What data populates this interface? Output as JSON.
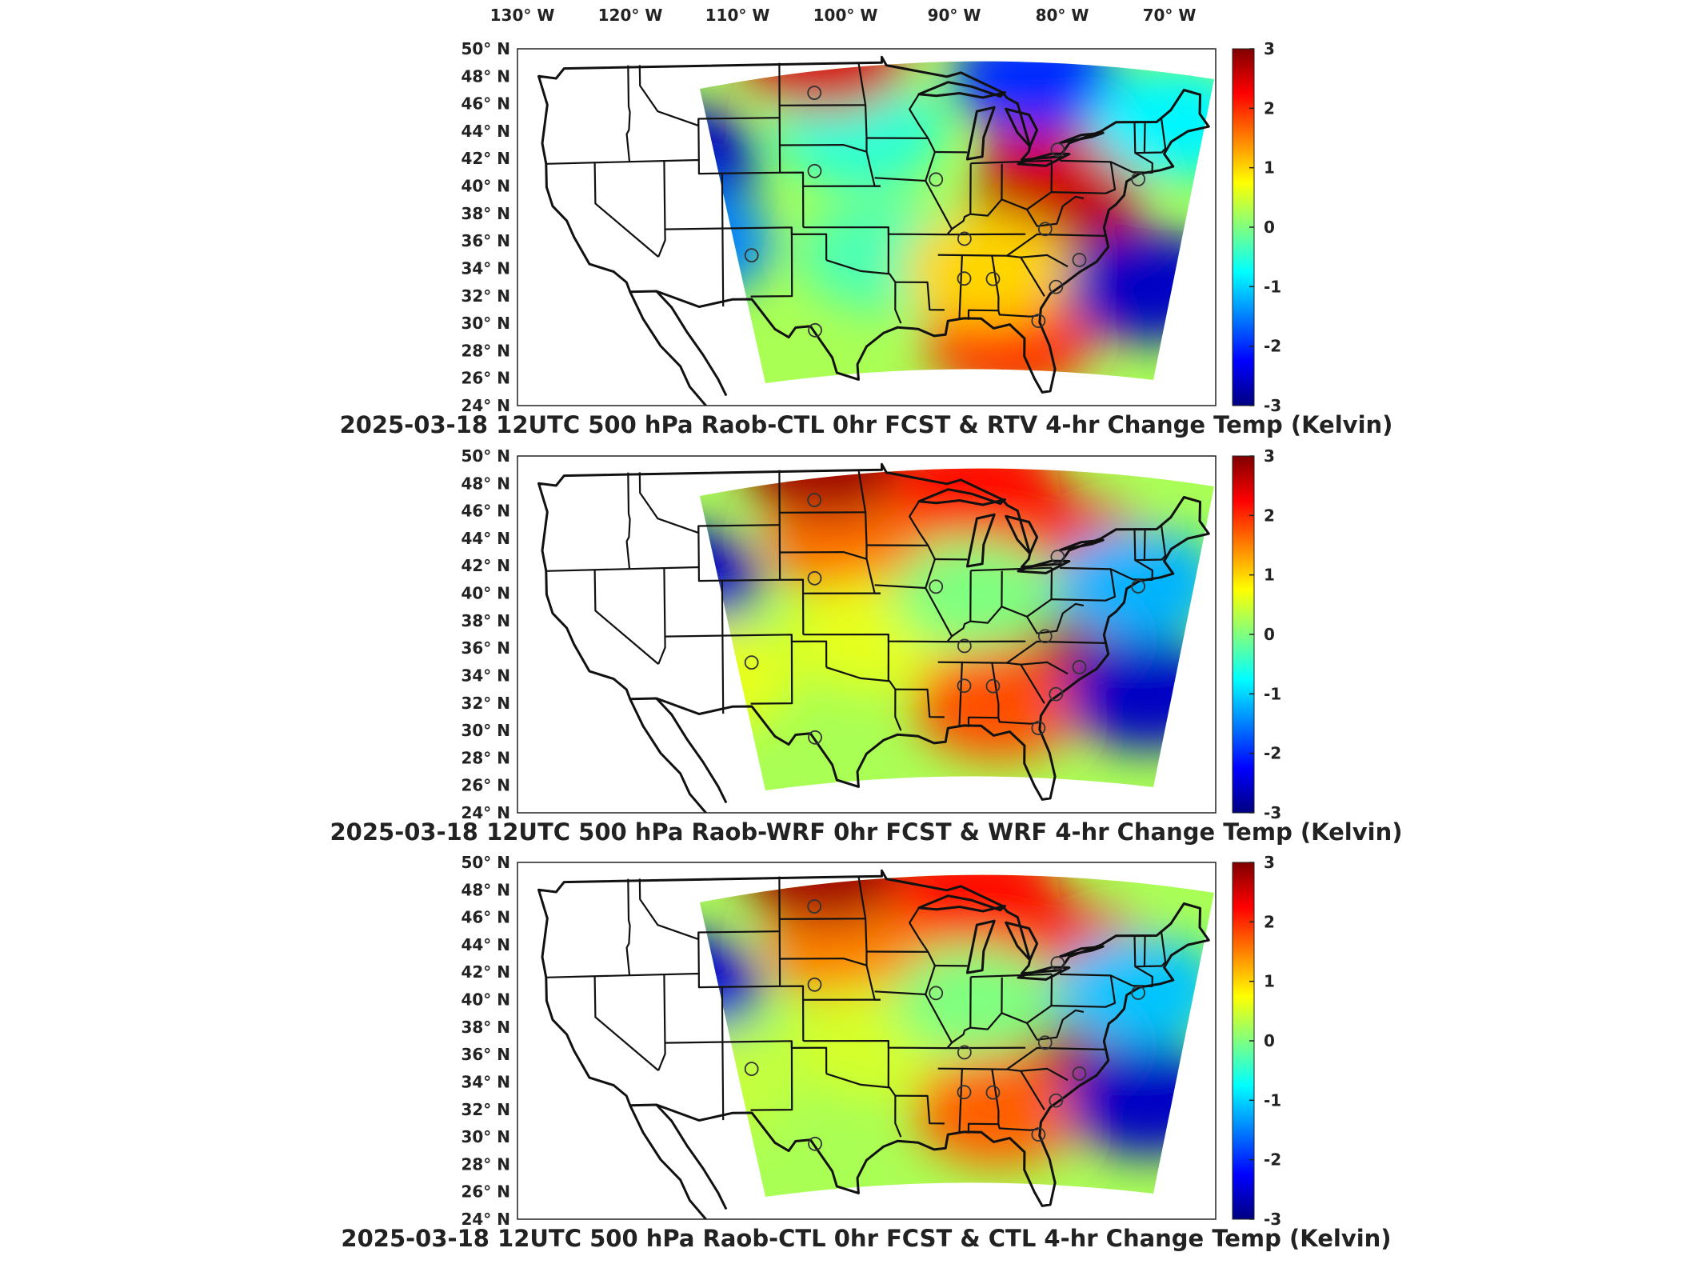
{
  "longitude_labels": [
    "130° W",
    "120° W",
    "110° W",
    "100° W",
    "90° W",
    "80° W",
    "70° W"
  ],
  "latitude_labels": [
    "50° N",
    "48° N",
    "46° N",
    "44° N",
    "42° N",
    "40° N",
    "38° N",
    "36° N",
    "34° N",
    "32° N",
    "30° N",
    "28° N",
    "26° N",
    "24° N"
  ],
  "colorbar": {
    "ticks": [
      "3",
      "2",
      "1",
      "0",
      "-1",
      "-2",
      "-3"
    ],
    "colormap": [
      "#800000",
      "#ff0000",
      "#ff8000",
      "#ffff00",
      "#80ff80",
      "#00ffff",
      "#0080ff",
      "#0000ff",
      "#000080"
    ]
  },
  "panels": [
    {
      "title": "2025-03-18 12UTC 500 hPa Raob-CTL 0hr FCST & RTV 4-hr Change Temp (Kelvin)",
      "chart_data": {
        "type": "heatmap",
        "variable": "500 hPa Temperature",
        "units": "Kelvin",
        "clim": [
          -3,
          3
        ],
        "blobs": [
          {
            "lon": -113,
            "lat": 42,
            "value": -2.6
          },
          {
            "lon": -112,
            "lat": 36,
            "value": -1.5
          },
          {
            "lon": -97,
            "lat": 44,
            "value": -0.5
          },
          {
            "lon": -95,
            "lat": 35,
            "value": -0.3
          },
          {
            "lon": -80,
            "lat": 39,
            "value": 2.7
          },
          {
            "lon": -79,
            "lat": 43,
            "value": 2.5
          },
          {
            "lon": -84,
            "lat": 29,
            "value": 2.0
          },
          {
            "lon": -86,
            "lat": 34,
            "value": 1.0
          },
          {
            "lon": -100,
            "lat": 49.5,
            "value": 2.5
          },
          {
            "lon": -82,
            "lat": 48,
            "value": -2.0
          },
          {
            "lon": -72,
            "lat": 33,
            "value": -2.6
          },
          {
            "lon": -70,
            "lat": 45,
            "value": -0.8
          }
        ]
      }
    },
    {
      "title": "2025-03-18 12UTC 500 hPa Raob-WRF 0hr FCST & WRF 4-hr Change Temp (Kelvin)",
      "chart_data": {
        "type": "heatmap",
        "variable": "500 hPa Temperature",
        "units": "Kelvin",
        "clim": [
          -3,
          3
        ],
        "blobs": [
          {
            "lon": -113,
            "lat": 41,
            "value": -2.6
          },
          {
            "lon": -110,
            "lat": 34,
            "value": 0.6
          },
          {
            "lon": -98,
            "lat": 44,
            "value": 1.6
          },
          {
            "lon": -96,
            "lat": 37,
            "value": 0.6
          },
          {
            "lon": -80,
            "lat": 38,
            "value": 2.8
          },
          {
            "lon": -79,
            "lat": 43,
            "value": 2.3
          },
          {
            "lon": -85,
            "lat": 32,
            "value": 1.8
          },
          {
            "lon": -100,
            "lat": 49.5,
            "value": 2.8
          },
          {
            "lon": -87,
            "lat": 48,
            "value": 2.2
          },
          {
            "lon": -72,
            "lat": 33,
            "value": -2.6
          },
          {
            "lon": -73,
            "lat": 41,
            "value": -1.2
          },
          {
            "lon": -87,
            "lat": 40,
            "value": 0.0
          }
        ]
      }
    },
    {
      "title": "2025-03-18 12UTC 500 hPa Raob-CTL 0hr FCST & CTL 4-hr Change Temp (Kelvin)",
      "chart_data": {
        "type": "heatmap",
        "variable": "500 hPa Temperature",
        "units": "Kelvin",
        "clim": [
          -3,
          3
        ],
        "blobs": [
          {
            "lon": -113,
            "lat": 41,
            "value": -2.5
          },
          {
            "lon": -110,
            "lat": 34,
            "value": 0.4
          },
          {
            "lon": -98,
            "lat": 44,
            "value": 1.5
          },
          {
            "lon": -96,
            "lat": 37,
            "value": 0.5
          },
          {
            "lon": -80,
            "lat": 38,
            "value": 2.8
          },
          {
            "lon": -79,
            "lat": 43,
            "value": 2.3
          },
          {
            "lon": -85,
            "lat": 32,
            "value": 1.7
          },
          {
            "lon": -100,
            "lat": 49.5,
            "value": 2.8
          },
          {
            "lon": -87,
            "lat": 48,
            "value": 2.2
          },
          {
            "lon": -72,
            "lat": 33,
            "value": -2.6
          },
          {
            "lon": -73,
            "lat": 41,
            "value": -1.1
          },
          {
            "lon": -87,
            "lat": 40,
            "value": 0.0
          }
        ]
      }
    }
  ],
  "stations": [
    {
      "lon": -101.0,
      "lat": 46.8
    },
    {
      "lon": -101.0,
      "lat": 41.1
    },
    {
      "lon": -90.5,
      "lat": 40.5
    },
    {
      "lon": -106.5,
      "lat": 35.0
    },
    {
      "lon": -101.0,
      "lat": 29.5
    },
    {
      "lon": -88.0,
      "lat": 36.2
    },
    {
      "lon": -88.0,
      "lat": 33.3
    },
    {
      "lon": -85.5,
      "lat": 33.3
    },
    {
      "lon": -81.5,
      "lat": 30.3
    },
    {
      "lon": -80.0,
      "lat": 42.8
    },
    {
      "lon": -78.0,
      "lat": 34.8
    },
    {
      "lon": -80.0,
      "lat": 32.8
    },
    {
      "lon": -81.0,
      "lat": 37.0
    },
    {
      "lon": -73.0,
      "lat": 40.8
    }
  ]
}
